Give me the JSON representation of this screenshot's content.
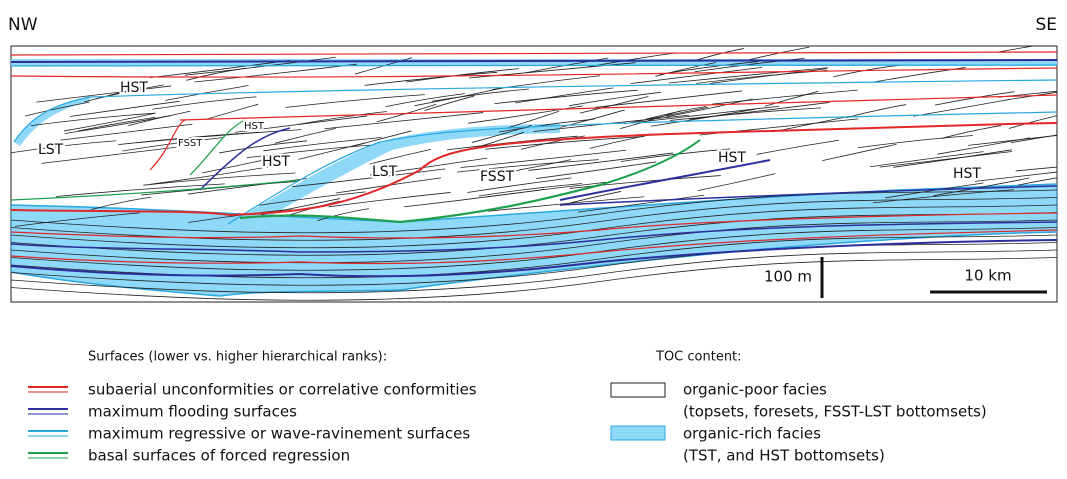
{
  "orientation": {
    "left": "NW",
    "right": "SE"
  },
  "section_labels": [
    "HST",
    "LST",
    "FSST",
    "HST",
    "HST",
    "LST",
    "FSST",
    "HST",
    "HST"
  ],
  "scale_bars": {
    "vertical": "100 m",
    "horizontal": "10 km"
  },
  "legend": {
    "surfaces": {
      "title": "Surfaces (lower vs. higher hierarchical ranks):",
      "items": [
        "subaerial unconformities or correlative conformities",
        "maximum flooding surfaces",
        "maximum regressive or wave-ravinement surfaces",
        "basal surfaces of forced regression"
      ]
    },
    "toc": {
      "title": "TOC content:",
      "items": [
        {
          "label": "organic-poor facies",
          "note": "(topsets, foresets, FSST-LST bottomsets)"
        },
        {
          "label": "organic-rich facies",
          "note": "(TST, and HST bottomsets)"
        }
      ]
    }
  }
}
